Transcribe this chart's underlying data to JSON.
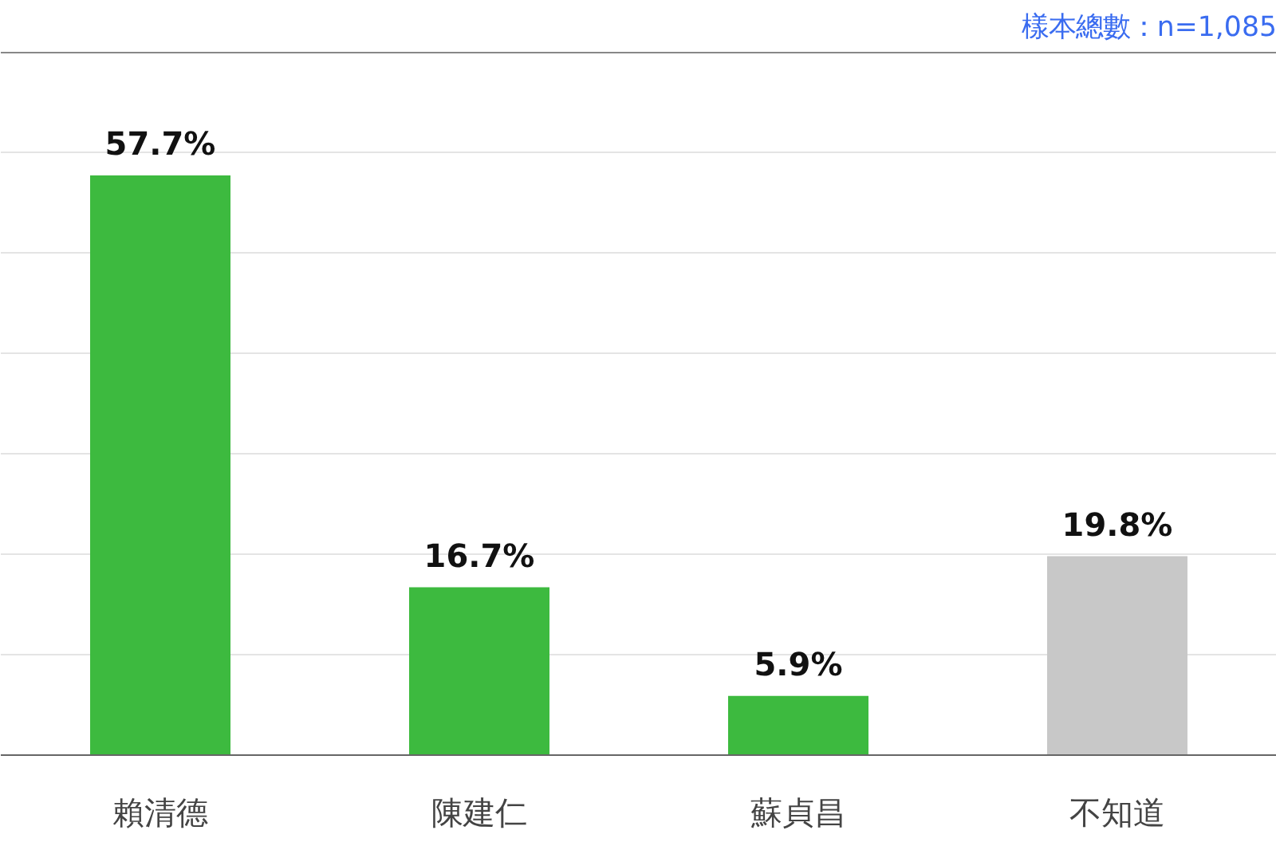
{
  "chart_data": {
    "type": "bar",
    "categories": [
      "賴清德",
      "陳建仁",
      "蘇貞昌",
      "不知道"
    ],
    "values": [
      57.7,
      16.7,
      5.9,
      19.8
    ],
    "colors": [
      "#3dba3f",
      "#3dba3f",
      "#3dba3f",
      "#c8c8c8"
    ],
    "value_labels": [
      "57.7%",
      "16.7%",
      "5.9%",
      "19.8%"
    ],
    "ylim": [
      0,
      70
    ],
    "yticks": [
      {
        "value": 0,
        "label": null
      },
      {
        "value": 10,
        "label": null
      },
      {
        "value": 20,
        "label": null
      },
      {
        "value": 30,
        "label": null
      },
      {
        "value": 40,
        "label": null
      },
      {
        "value": 50,
        "label": null
      },
      {
        "value": 60,
        "label": null
      },
      {
        "value": 70,
        "label": null
      }
    ],
    "grid": "y",
    "tick_labels": "x",
    "annotations": [
      "樣本總數：n=1,085"
    ]
  }
}
